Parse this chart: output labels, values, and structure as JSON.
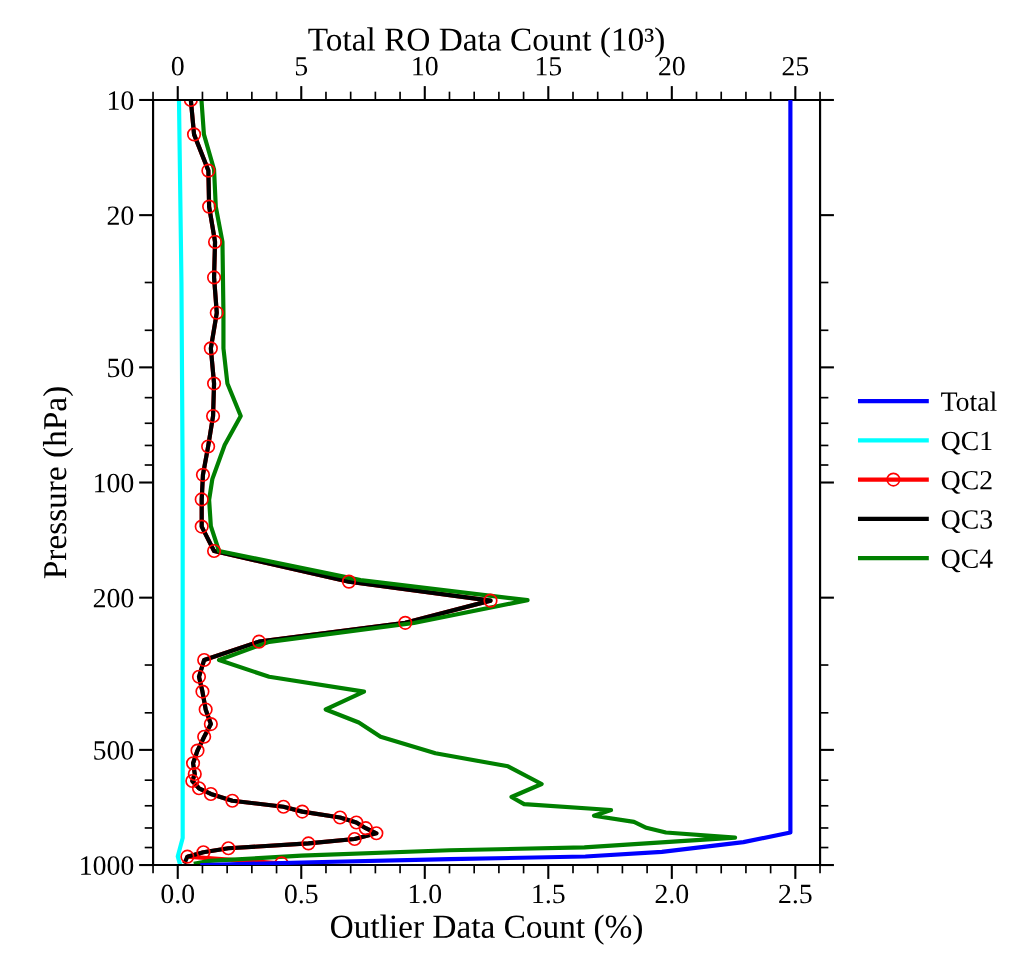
{
  "chart_data": {
    "type": "line",
    "xlabel": "Outlier Data Count (%)",
    "ylabel": "Pressure (hPa)",
    "x2label": "Total RO Data Count (10³)",
    "log": "y",
    "grid": false,
    "legend": "right",
    "line_style": "solid",
    "xlim": [
      -0.1,
      2.6
    ],
    "xticks": [
      {
        "value": 0,
        "label": "0.0"
      },
      0.5,
      {
        "value": 1,
        "label": "1.0"
      },
      1.5,
      {
        "value": 2,
        "label": "2.0"
      },
      2.5
    ],
    "x2lim": [
      -1,
      26
    ],
    "x2ticks": [
      0,
      5,
      10,
      15,
      20,
      25
    ],
    "ylim": [
      1000,
      10
    ],
    "yticks": [
      10,
      20,
      50,
      100,
      200,
      500,
      1000
    ],
    "series": [
      {
        "name": "Total",
        "color": "#0000ff",
        "axis": "x2",
        "marker": "none",
        "x": [
          1.0,
          5.0,
          11.0,
          16.5,
          19.6,
          22.9,
          24.8,
          24.8
        ],
        "values": [
          1000,
          985,
          965,
          950,
          924,
          871,
          822,
          10
        ]
      },
      {
        "name": "QC1",
        "color": "#00ffff",
        "marker": "none",
        "x": [
          0.005,
          0.015,
          0.02,
          0.02,
          0.02,
          0.0,
          0.01
        ],
        "values": [
          10,
          30,
          100,
          500,
          850,
          950,
          1000
        ]
      },
      {
        "name": "QC2",
        "color": "#ff0000",
        "marker": "circle",
        "x": [
          0.053,
          0.066,
          0.124,
          0.127,
          0.151,
          0.147,
          0.158,
          0.134,
          0.147,
          0.143,
          0.123,
          0.102,
          0.097,
          0.097,
          0.147,
          0.693,
          1.266,
          0.921,
          0.329,
          0.107,
          0.086,
          0.1,
          0.113,
          0.134,
          0.107,
          0.08,
          0.062,
          0.069,
          0.059,
          0.086,
          0.134,
          0.221,
          0.428,
          0.504,
          0.657,
          0.723,
          0.761,
          0.804,
          0.716,
          0.529,
          0.205,
          0.104,
          0.039,
          0.42
        ],
        "values": [
          10,
          12.3,
          15.3,
          19,
          23.5,
          29.1,
          36,
          44.6,
          55.1,
          67,
          80.5,
          95.5,
          110.7,
          130.4,
          151,
          181.6,
          203.6,
          232.7,
          260.6,
          291,
          322,
          352,
          392,
          428,
          462,
          502,
          542,
          578,
          603,
          630,
          652,
          679,
          704,
          725,
          751,
          774,
          801,
          826,
          855,
          878,
          904,
          926,
          951,
          990
        ]
      },
      {
        "name": "QC3",
        "color": "#000000",
        "marker": "none",
        "x": [
          0.053,
          0.066,
          0.124,
          0.127,
          0.151,
          0.147,
          0.158,
          0.134,
          0.147,
          0.143,
          0.123,
          0.102,
          0.097,
          0.097,
          0.147,
          0.693,
          1.266,
          0.921,
          0.329,
          0.107,
          0.086,
          0.1,
          0.113,
          0.134,
          0.107,
          0.08,
          0.062,
          0.069,
          0.059,
          0.086,
          0.134,
          0.221,
          0.428,
          0.504,
          0.657,
          0.723,
          0.761,
          0.804,
          0.716,
          0.529,
          0.205,
          0.104,
          0.039,
          0.03
        ],
        "values": [
          10,
          12.3,
          15.3,
          19,
          23.5,
          29.1,
          36,
          44.6,
          55.1,
          67,
          80.5,
          95.5,
          110.7,
          130.4,
          151,
          181.6,
          203.6,
          232.7,
          260.6,
          291,
          322,
          352,
          392,
          428,
          462,
          502,
          542,
          578,
          603,
          630,
          652,
          679,
          704,
          725,
          751,
          774,
          801,
          826,
          855,
          878,
          904,
          926,
          951,
          980
        ]
      },
      {
        "name": "QC4",
        "color": "#008000",
        "marker": "none",
        "x": [
          0.096,
          0.106,
          0.147,
          0.154,
          0.181,
          0.185,
          0.185,
          0.201,
          0.255,
          0.19,
          0.14,
          0.127,
          0.134,
          0.167,
          0.74,
          1.416,
          0.956,
          0.37,
          0.167,
          0.37,
          0.754,
          0.599,
          0.733,
          0.821,
          1.043,
          1.337,
          1.473,
          1.351,
          1.402,
          1.754,
          1.685,
          1.847,
          1.897,
          1.976,
          2.256,
          1.646,
          1.1,
          0.5,
          0.13,
          0.073
        ],
        "values": [
          10,
          12.3,
          15.2,
          19,
          23.5,
          36.1,
          44.6,
          55.1,
          67,
          79.8,
          98,
          111,
          130,
          151,
          180,
          203,
          233,
          261,
          291,
          322,
          352,
          392,
          424,
          462,
          510,
          552,
          614,
          664,
          693,
          718,
          743,
          771,
          799,
          822,
          848,
          899,
          915,
          945,
          975,
          990
        ]
      }
    ]
  }
}
